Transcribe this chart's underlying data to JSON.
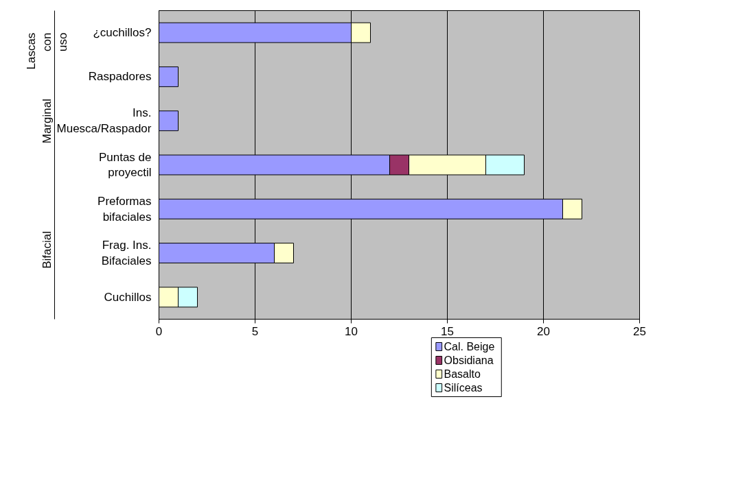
{
  "chart_data": {
    "type": "bar",
    "orientation": "horizontal",
    "stacked": true,
    "categories": [
      "¿cuchillos?",
      "Raspadores",
      "Ins.\nMuesca/Raspador",
      "Puntas de\nproyectil",
      "Preformas\nbifaciales",
      "Frag. Ins.\nBifaciales",
      "Cuchillos"
    ],
    "series": [
      {
        "name": "Cal. Beige",
        "color": "#9999ff",
        "values": [
          10,
          1,
          1,
          12,
          21,
          6,
          null
        ]
      },
      {
        "name": "Obsidiana",
        "color": "#993366",
        "values": [
          null,
          null,
          null,
          1,
          null,
          null,
          null
        ]
      },
      {
        "name": "Basalto",
        "color": "#ffffcc",
        "values": [
          1,
          null,
          null,
          4,
          1,
          1,
          1
        ]
      },
      {
        "name": "Silíceas",
        "color": "#ccffff",
        "values": [
          null,
          null,
          null,
          2,
          null,
          null,
          1
        ]
      }
    ],
    "xlim": [
      0,
      25
    ],
    "xticks": [
      0,
      5,
      10,
      15,
      20,
      25
    ],
    "grid": "x",
    "legend": "bottom",
    "annotations": [
      "Lascas\ncon\nuso",
      "Marginal",
      "Bifacial"
    ]
  }
}
